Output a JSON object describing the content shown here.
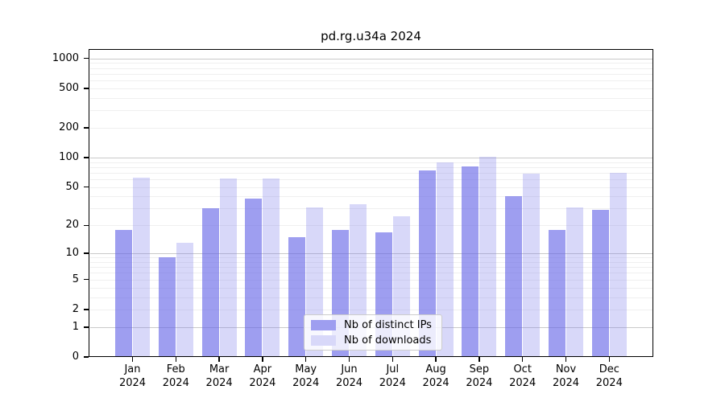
{
  "chart_data": {
    "type": "bar",
    "title": "pd.rg.u34a 2024",
    "categories": [
      {
        "month": "Jan",
        "year": "2024"
      },
      {
        "month": "Feb",
        "year": "2024"
      },
      {
        "month": "Mar",
        "year": "2024"
      },
      {
        "month": "Apr",
        "year": "2024"
      },
      {
        "month": "May",
        "year": "2024"
      },
      {
        "month": "Jun",
        "year": "2024"
      },
      {
        "month": "Jul",
        "year": "2024"
      },
      {
        "month": "Aug",
        "year": "2024"
      },
      {
        "month": "Sep",
        "year": "2024"
      },
      {
        "month": "Oct",
        "year": "2024"
      },
      {
        "month": "Nov",
        "year": "2024"
      },
      {
        "month": "Dec",
        "year": "2024"
      }
    ],
    "series": [
      {
        "name": "Nb of distinct IPs",
        "color": "#9e9ef0",
        "values": [
          18,
          9,
          30,
          38,
          15,
          18,
          17,
          74,
          81,
          40,
          18,
          29
        ]
      },
      {
        "name": "Nb of downloads",
        "color": "#d8d8f9",
        "values": [
          62,
          13,
          61,
          61,
          31,
          33,
          25,
          89,
          101,
          68,
          31,
          70
        ]
      }
    ],
    "yscale": "symlog",
    "ylim": [
      0,
      1000
    ],
    "yticks": [
      1000,
      500,
      200,
      100,
      50,
      20,
      10,
      5,
      2,
      1,
      0
    ],
    "grid": true,
    "legend_position": "lower center",
    "xlabel": "",
    "ylabel": ""
  }
}
